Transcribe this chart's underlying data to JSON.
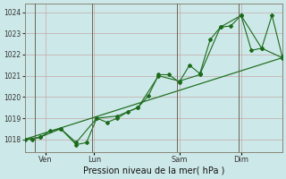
{
  "background_color": "#cde8e8",
  "grid_color": "#c4a8a8",
  "line_color": "#1a6b1a",
  "xlabel": "Pression niveau de la mer( hPa )",
  "ylim": [
    1017.4,
    1024.4
  ],
  "yticks": [
    1018,
    1019,
    1020,
    1021,
    1022,
    1023,
    1024
  ],
  "day_labels": [
    "Ven",
    "Lun",
    "Sam",
    "Dim"
  ],
  "day_positions": [
    0.08,
    0.27,
    0.6,
    0.84
  ],
  "vline_positions": [
    0.04,
    0.26,
    0.59,
    0.83
  ],
  "xlim": [
    0,
    100
  ],
  "series1_x": [
    0,
    3,
    6,
    10,
    14,
    20,
    24,
    28,
    32,
    36,
    40,
    44,
    48,
    52,
    56,
    60,
    64,
    68,
    72,
    76,
    80,
    84,
    88,
    92,
    96,
    100
  ],
  "series1_y": [
    1018.0,
    1018.0,
    1018.1,
    1018.4,
    1018.5,
    1017.75,
    1017.85,
    1019.0,
    1018.8,
    1019.0,
    1019.3,
    1019.5,
    1020.05,
    1021.05,
    1021.05,
    1020.7,
    1021.5,
    1021.1,
    1022.7,
    1023.3,
    1023.35,
    1023.85,
    1022.2,
    1022.3,
    1023.85,
    1021.9
  ],
  "series2_x": [
    0,
    6,
    14,
    20,
    28,
    36,
    44,
    52,
    60,
    68,
    76,
    84,
    92,
    100
  ],
  "series2_y": [
    1018.0,
    1018.1,
    1018.5,
    1017.85,
    1019.0,
    1019.1,
    1019.5,
    1021.0,
    1020.75,
    1021.05,
    1023.3,
    1023.85,
    1022.3,
    1021.85
  ],
  "trend_x": [
    0,
    100
  ],
  "trend_y": [
    1018.0,
    1021.85
  ]
}
